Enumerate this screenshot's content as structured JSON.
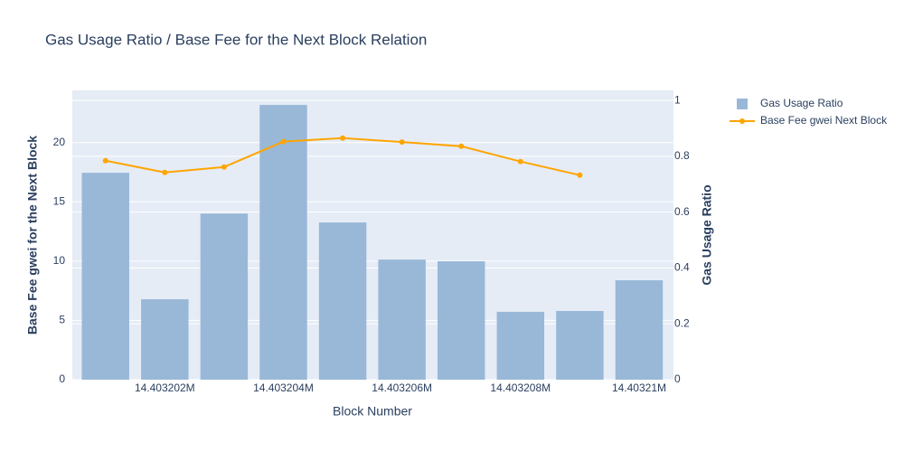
{
  "chart_data": {
    "type": "bar_line",
    "title": "Gas Usage Ratio / Base Fee for the Next Block Relation",
    "x_label": "Block Number",
    "y_label": "Base Fee gwei for the Next Block",
    "y2_label": "Gas Usage Ratio",
    "x": [
      14403201,
      14403202,
      14403203,
      14403204,
      14403205,
      14403206,
      14403207,
      14403208,
      14403209,
      14403210
    ],
    "series": [
      {
        "name": "Gas Usage Ratio",
        "type": "bar",
        "axis": "y2",
        "color": "#99b8d8",
        "values": [
          0.741,
          0.288,
          0.595,
          0.984,
          0.563,
          0.43,
          0.424,
          0.243,
          0.246,
          0.356
        ]
      },
      {
        "name": "Base Fee gwei Next Block",
        "type": "line",
        "axis": "y",
        "color": "#ffa500",
        "values": [
          18.47,
          17.48,
          17.94,
          20.08,
          20.38,
          20.04,
          19.69,
          18.4,
          17.25,
          null
        ]
      }
    ],
    "xlim": [
      14403200.44,
      14403210.58
    ],
    "xticks": [
      {
        "value": 14403202,
        "label": "14.403202M"
      },
      {
        "value": 14403204,
        "label": "14.403204M"
      },
      {
        "value": 14403206,
        "label": "14.403206M"
      },
      {
        "value": 14403208,
        "label": "14.403208M"
      },
      {
        "value": 14403210,
        "label": "14.40321M"
      }
    ],
    "ylim": [
      0,
      24.4
    ],
    "yticks": [
      0,
      5,
      10,
      15,
      20
    ],
    "y2lim": [
      0,
      1.036
    ],
    "y2ticks": [
      0,
      0.2,
      0.4,
      0.6,
      0.8,
      1
    ],
    "grid": true,
    "legend": "right"
  }
}
